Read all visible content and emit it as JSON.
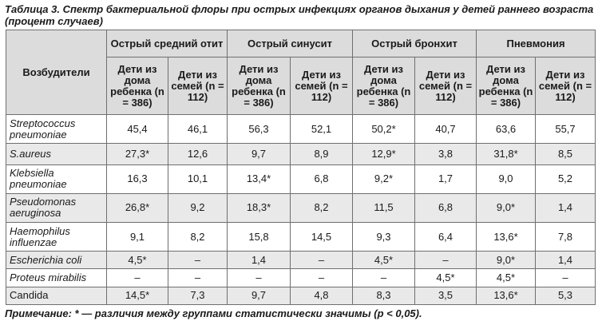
{
  "caption": "Таблица 3. Спектр бактериальной флоры при острых инфекциях органов дыхания у детей раннего возраста (процент случаев)",
  "header": {
    "pathogen_label": "Возбудители",
    "groups": [
      "Острый средний отит",
      "Острый синусит",
      "Острый бронхит",
      "Пневмония"
    ],
    "sub": [
      "Дети из дома ребенка (n = 386)",
      "Дети из семей (n = 112)"
    ]
  },
  "rows": [
    {
      "name": "Streptococcus pneumoniae",
      "italic": true,
      "values": [
        "45,4",
        "46,1",
        "56,3",
        "52,1",
        "50,2*",
        "40,7",
        "63,6",
        "55,7"
      ]
    },
    {
      "name": "S.aureus",
      "italic": true,
      "values": [
        "27,3*",
        "12,6",
        "9,7",
        "8,9",
        "12,9*",
        "3,8",
        "31,8*",
        "8,5"
      ]
    },
    {
      "name": "Klebsiella pneumoniae",
      "italic": true,
      "values": [
        "16,3",
        "10,1",
        "13,4*",
        "6,8",
        "9,2*",
        "1,7",
        "9,0",
        "5,2"
      ]
    },
    {
      "name": "Pseudomonas aeruginosa",
      "italic": true,
      "values": [
        "26,8*",
        "9,2",
        "18,3*",
        "8,2",
        "11,5",
        "6,8",
        "9,0*",
        "1,4"
      ]
    },
    {
      "name": "Haemophilus influenzae",
      "italic": true,
      "values": [
        "9,1",
        "8,2",
        "15,8",
        "14,5",
        "9,3",
        "6,4",
        "13,6*",
        "7,8"
      ]
    },
    {
      "name": "Escherichia coli",
      "italic": true,
      "values": [
        "4,5*",
        "–",
        "1,4",
        "–",
        "4,5*",
        "–",
        "9,0*",
        "1,4"
      ]
    },
    {
      "name": "Proteus mirabilis",
      "italic": true,
      "values": [
        "–",
        "–",
        "–",
        "–",
        "–",
        "4,5*",
        "4,5*",
        "–"
      ]
    },
    {
      "name": "Candida",
      "italic": false,
      "values": [
        "14,5*",
        "7,3",
        "9,7",
        "4,8",
        "8,3",
        "3,5",
        "13,6*",
        "5,3"
      ]
    }
  ],
  "note": "Примечание: * — различия между группами статистически значимы (p < 0,05)."
}
